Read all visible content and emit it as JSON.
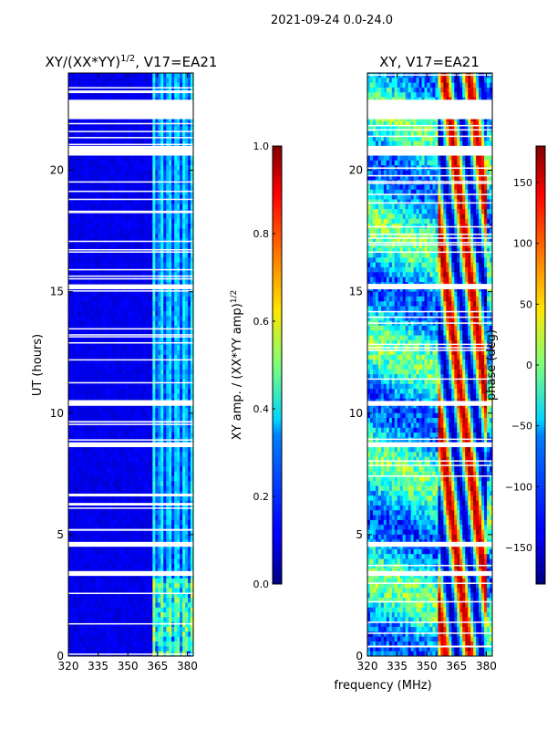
{
  "figure_title": "2021-09-24 0.0-24.0",
  "chart_data": [
    {
      "type": "heatmap",
      "title": "XY/(XX*YY)",
      "title_superscript": "1/2",
      "title_suffix": ", V17=EA21",
      "xlabel": "",
      "ylabel": "UT (hours)",
      "x_range": [
        320,
        383
      ],
      "y_range": [
        0,
        24
      ],
      "x_ticks": [
        "320",
        "335",
        "350",
        "365",
        "380"
      ],
      "x_tick_values": [
        320,
        335,
        350,
        365,
        380
      ],
      "y_ticks": [
        "0",
        "5",
        "10",
        "15",
        "20"
      ],
      "y_tick_values": [
        0,
        5,
        10,
        15,
        20
      ],
      "colorbar": {
        "label": "XY amp. / (XX*YY amp)",
        "label_superscript": "1/2",
        "range": [
          0.0,
          1.0
        ],
        "ticks": [
          "0.0",
          "0.2",
          "0.4",
          "0.6",
          "0.8",
          "1.0"
        ],
        "tick_values": [
          0.0,
          0.2,
          0.4,
          0.6,
          0.8,
          1.0
        ]
      },
      "colormap": "jet",
      "high_band_start_mhz": 362,
      "flagged_hours": [
        [
          20.6,
          21.0
        ],
        [
          22.1,
          22.9
        ],
        [
          15.1,
          15.3
        ],
        [
          10.3,
          10.5
        ],
        [
          8.6,
          8.8
        ],
        [
          4.5,
          4.7
        ],
        [
          3.3,
          3.5
        ]
      ]
    },
    {
      "type": "heatmap",
      "title": "XY, V17=EA21",
      "xlabel": "frequency (MHz)",
      "ylabel": "",
      "x_range": [
        320,
        383
      ],
      "y_range": [
        0,
        24
      ],
      "x_ticks": [
        "320",
        "335",
        "350",
        "365",
        "380"
      ],
      "x_tick_values": [
        320,
        335,
        350,
        365,
        380
      ],
      "y_ticks": [
        "0",
        "5",
        "10",
        "15",
        "20"
      ],
      "y_tick_values": [
        0,
        5,
        10,
        15,
        20
      ],
      "colorbar": {
        "label": "phase (deg)",
        "range": [
          -180,
          180
        ],
        "ticks": [
          "−150",
          "−100",
          "−50",
          "0",
          "50",
          "100",
          "150"
        ],
        "tick_values": [
          -150,
          -100,
          -50,
          0,
          50,
          100,
          150
        ]
      },
      "colormap": "jet",
      "flagged_hours": [
        [
          20.6,
          21.0
        ],
        [
          22.1,
          22.9
        ],
        [
          15.1,
          15.3
        ],
        [
          10.3,
          10.5
        ],
        [
          8.6,
          8.8
        ],
        [
          4.5,
          4.7
        ],
        [
          3.3,
          3.5
        ]
      ]
    }
  ]
}
